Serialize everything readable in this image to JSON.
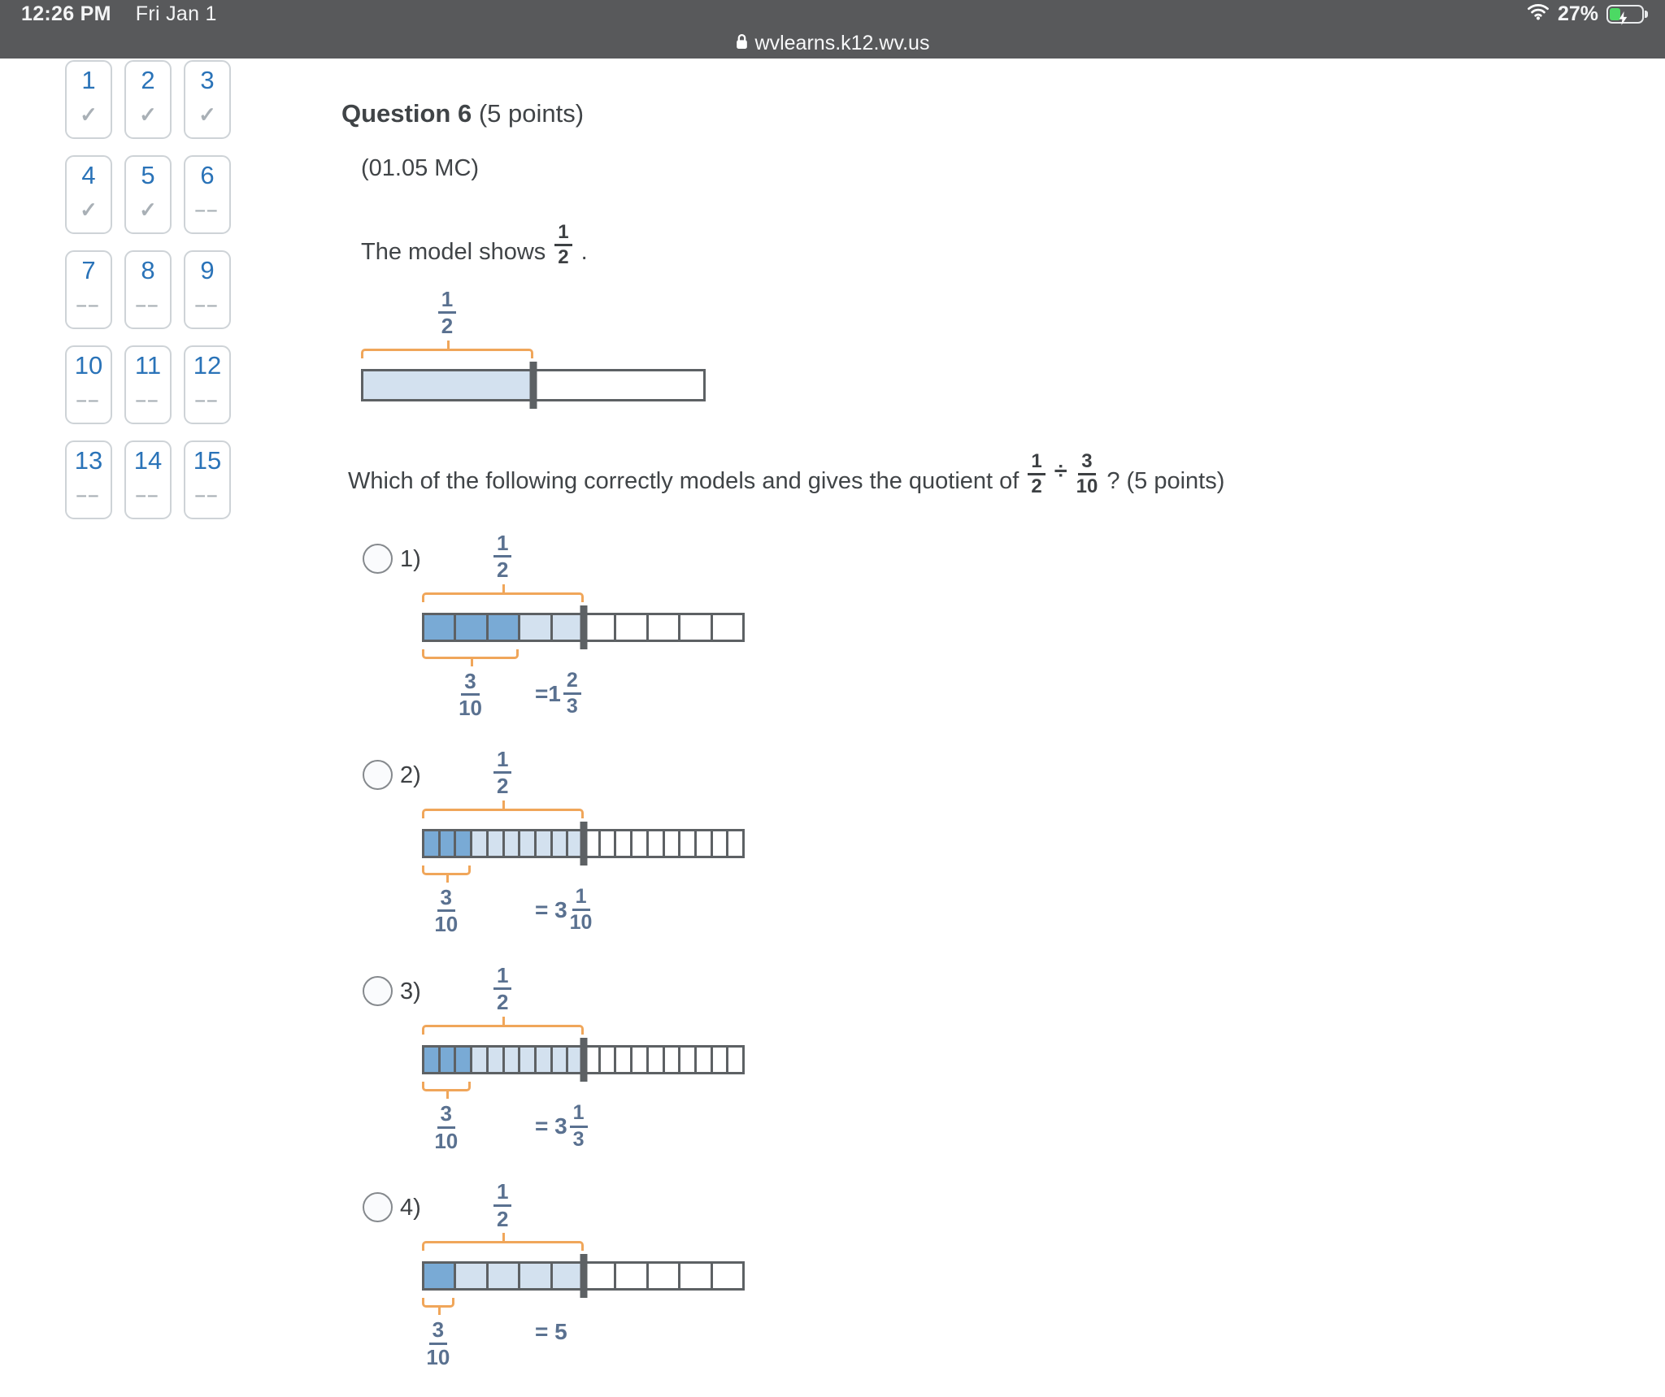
{
  "colors": {
    "chrome": "#58595b",
    "number_blue": "#2a73b8",
    "check_gray": "#a9b0b6",
    "text": "#404447",
    "frac_slate": "#5a7190",
    "bracket": "#f0a65a",
    "dark_cell": "#79aad5",
    "light_cell": "#d3e1ef",
    "bar_border": "#5d6164",
    "battery_green": "#4cd964"
  },
  "status_bar": {
    "time": "12:26 PM",
    "date": "Fri Jan 1",
    "battery": "27%",
    "wifi_icon": "wifi-icon",
    "battery_icon": "battery-charging-icon"
  },
  "url_bar": {
    "lock_icon": "lock-icon",
    "domain": "wvlearns.k12.wv.us"
  },
  "palette": {
    "items": [
      {
        "number": "1",
        "status": "answered",
        "glyph": "✓"
      },
      {
        "number": "2",
        "status": "answered",
        "glyph": "✓"
      },
      {
        "number": "3",
        "status": "answered",
        "glyph": "✓"
      },
      {
        "number": "4",
        "status": "answered",
        "glyph": "✓"
      },
      {
        "number": "5",
        "status": "answered",
        "glyph": "✓"
      },
      {
        "number": "6",
        "status": "unanswered",
        "glyph": "‒‒"
      },
      {
        "number": "7",
        "status": "unanswered",
        "glyph": "‒‒"
      },
      {
        "number": "8",
        "status": "unanswered",
        "glyph": "‒‒"
      },
      {
        "number": "9",
        "status": "unanswered",
        "glyph": "‒‒"
      },
      {
        "number": "10",
        "status": "unanswered",
        "glyph": "‒‒"
      },
      {
        "number": "11",
        "status": "unanswered",
        "glyph": "‒‒"
      },
      {
        "number": "12",
        "status": "unanswered",
        "glyph": "‒‒"
      },
      {
        "number": "13",
        "status": "unanswered",
        "glyph": "‒‒"
      },
      {
        "number": "14",
        "status": "unanswered",
        "glyph": "‒‒"
      },
      {
        "number": "15",
        "status": "unanswered",
        "glyph": "‒‒"
      }
    ]
  },
  "question": {
    "heading": "Question 6",
    "points": "(5 points)",
    "code": "(01.05 MC)",
    "intro": {
      "prefix": "The model shows",
      "frac": {
        "n": "1",
        "d": "2"
      },
      "suffix": "."
    },
    "model": {
      "label": {
        "n": "1",
        "d": "2"
      },
      "bar": {
        "cells": 2,
        "dark": 0,
        "light": 1
      }
    },
    "prompt": {
      "prefix": "Which of the following correctly models and gives the quotient of",
      "frac1": {
        "n": "1",
        "d": "2"
      },
      "divide": "÷",
      "frac2": {
        "n": "3",
        "d": "10"
      },
      "suffix": "? (5 points)"
    }
  },
  "options": [
    {
      "label": "1)",
      "top_label": {
        "n": "1",
        "d": "2"
      },
      "bottom_label": {
        "n": "3",
        "d": "10"
      },
      "bar": {
        "cells": 10,
        "dark": 3,
        "light": 2
      },
      "result_prefix": "=1",
      "result_frac": {
        "n": "2",
        "d": "3"
      }
    },
    {
      "label": "2)",
      "top_label": {
        "n": "1",
        "d": "2"
      },
      "bottom_label": {
        "n": "3",
        "d": "10"
      },
      "bar": {
        "cells": 20,
        "dark": 3,
        "light": 7
      },
      "result_prefix": "= 3",
      "result_frac": {
        "n": "1",
        "d": "10"
      }
    },
    {
      "label": "3)",
      "top_label": {
        "n": "1",
        "d": "2"
      },
      "bottom_label": {
        "n": "3",
        "d": "10"
      },
      "bar": {
        "cells": 20,
        "dark": 3,
        "light": 7
      },
      "result_prefix": "= 3",
      "result_frac": {
        "n": "1",
        "d": "3"
      }
    },
    {
      "label": "4)",
      "top_label": {
        "n": "1",
        "d": "2"
      },
      "bottom_label": {
        "n": "3",
        "d": "10"
      },
      "bar": {
        "cells": 10,
        "dark": 1,
        "light": 4
      },
      "result_prefix": "= 5",
      "result_frac": null
    }
  ]
}
